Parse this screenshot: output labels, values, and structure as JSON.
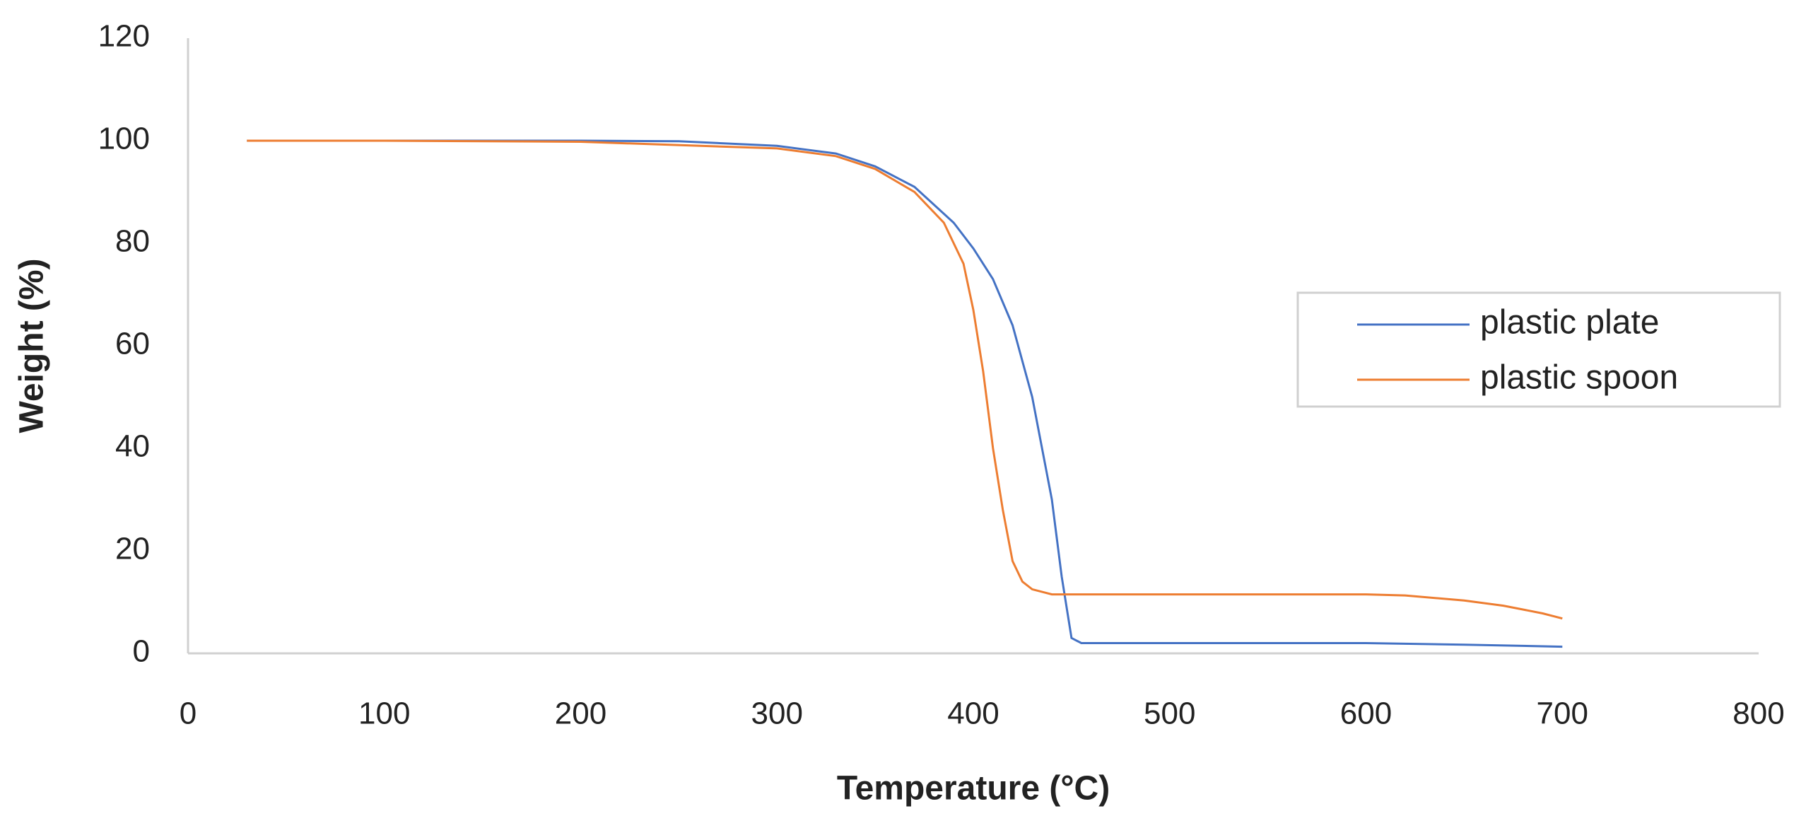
{
  "chart_data": {
    "type": "line",
    "xlabel": "Temperature (°C)",
    "ylabel": "Weight  (%)",
    "xlim": [
      0,
      800
    ],
    "xticks": [
      0,
      100,
      200,
      300,
      400,
      500,
      600,
      700,
      800
    ],
    "ylim": [
      0,
      120
    ],
    "yticks": [
      0,
      20,
      40,
      60,
      80,
      100,
      120
    ],
    "grid": false,
    "legend": "right",
    "series": [
      {
        "name": "plastic plate",
        "color": "#4472c4",
        "x": [
          30,
          100,
          200,
          250,
          300,
          330,
          350,
          370,
          390,
          400,
          410,
          420,
          430,
          440,
          445,
          450,
          455,
          500,
          600,
          650,
          700
        ],
        "values": [
          100,
          100,
          100,
          99.9,
          99,
          97.5,
          95,
          91,
          84,
          79,
          73,
          64,
          50,
          30,
          15,
          3,
          2,
          2,
          2,
          1.7,
          1.3
        ]
      },
      {
        "name": "plastic spoon",
        "color": "#ed7d31",
        "x": [
          30,
          100,
          200,
          300,
          330,
          350,
          370,
          385,
          395,
          400,
          405,
          410,
          415,
          420,
          425,
          430,
          440,
          500,
          600,
          620,
          650,
          670,
          690,
          700
        ],
        "values": [
          100,
          100,
          99.8,
          98.5,
          97,
          94.5,
          90,
          84,
          76,
          67,
          55,
          40,
          28,
          18,
          14,
          12.5,
          11.5,
          11.5,
          11.5,
          11.3,
          10.3,
          9.3,
          7.8,
          6.8
        ]
      }
    ]
  }
}
